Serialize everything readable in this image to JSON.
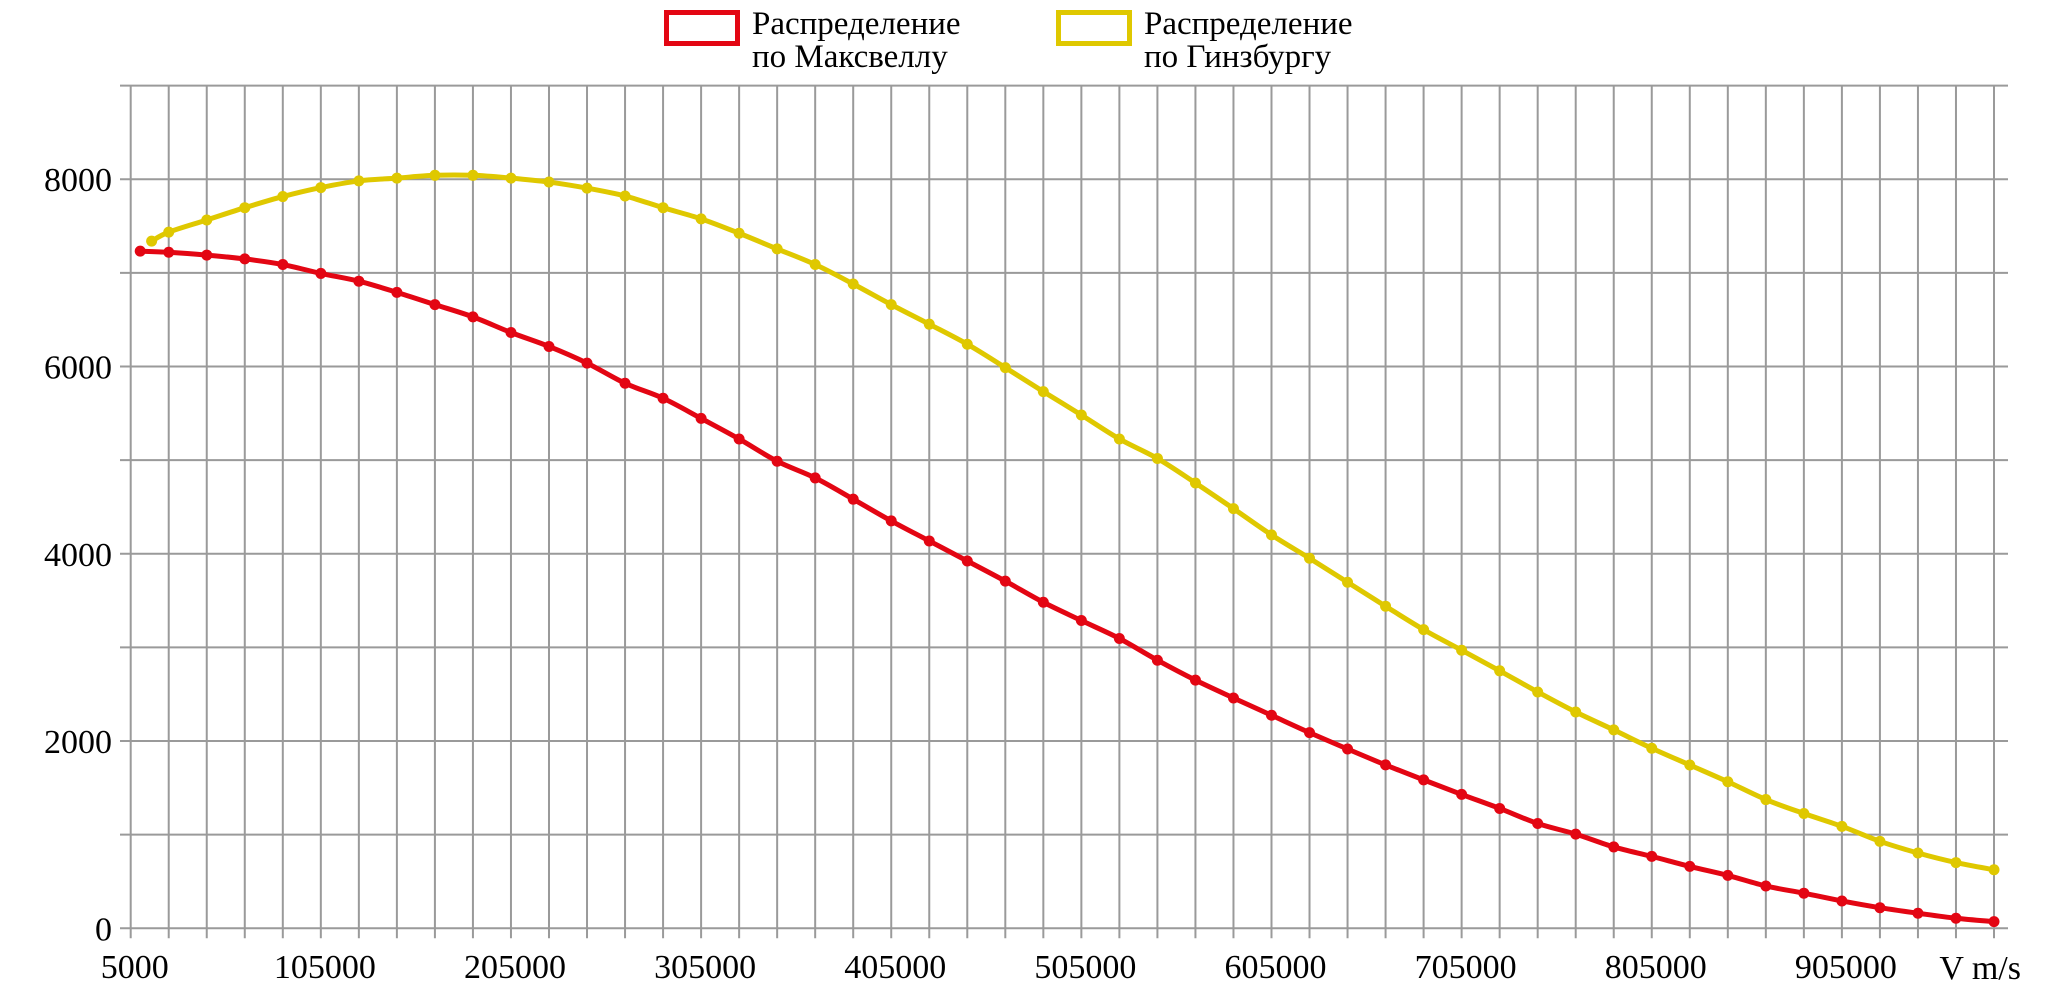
{
  "chart_data": {
    "type": "line",
    "title": "",
    "xlabel": "V m/s",
    "ylabel": "",
    "xlim": [
      5000,
      985000
    ],
    "ylim": [
      0,
      9000
    ],
    "x_grid_step": 20000,
    "y_grid_step": 1000,
    "grid": true,
    "legend_placement": "top-center",
    "x_tick_values": [
      5000,
      105000,
      205000,
      305000,
      405000,
      505000,
      605000,
      705000,
      805000,
      905000
    ],
    "x_tick_labels": [
      "5000",
      "105000",
      "205000",
      "305000",
      "405000",
      "505000",
      "605000",
      "705000",
      "805000",
      "905000"
    ],
    "y_tick_values": [
      0,
      2000,
      4000,
      6000,
      8000
    ],
    "y_tick_labels": [
      "0",
      "2000",
      "4000",
      "6000",
      "8000"
    ],
    "series": [
      {
        "name_lines": [
          "Распределение",
          "по Максвеллу"
        ],
        "color": "#e30613",
        "points": [
          [
            10000,
            7232
          ],
          [
            25000,
            7220
          ],
          [
            45000,
            7190
          ],
          [
            65000,
            7149
          ],
          [
            85000,
            7089
          ],
          [
            105000,
            6994
          ],
          [
            125000,
            6911
          ],
          [
            145000,
            6792
          ],
          [
            165000,
            6661
          ],
          [
            185000,
            6530
          ],
          [
            205000,
            6363
          ],
          [
            225000,
            6214
          ],
          [
            245000,
            6036
          ],
          [
            265000,
            5821
          ],
          [
            285000,
            5661
          ],
          [
            305000,
            5446
          ],
          [
            325000,
            5226
          ],
          [
            345000,
            4988
          ],
          [
            365000,
            4810
          ],
          [
            385000,
            4583
          ],
          [
            405000,
            4351
          ],
          [
            425000,
            4137
          ],
          [
            445000,
            3923
          ],
          [
            465000,
            3708
          ],
          [
            485000,
            3482
          ],
          [
            505000,
            3287
          ],
          [
            525000,
            3095
          ],
          [
            545000,
            2863
          ],
          [
            565000,
            2650
          ],
          [
            585000,
            2460
          ],
          [
            605000,
            2275
          ],
          [
            625000,
            2090
          ],
          [
            645000,
            1915
          ],
          [
            665000,
            1745
          ],
          [
            685000,
            1585
          ],
          [
            705000,
            1430
          ],
          [
            725000,
            1280
          ],
          [
            745000,
            1119
          ],
          [
            765000,
            1006
          ],
          [
            785000,
            869
          ],
          [
            805000,
            768
          ],
          [
            825000,
            661
          ],
          [
            845000,
            565
          ],
          [
            865000,
            452
          ],
          [
            885000,
            375
          ],
          [
            905000,
            292
          ],
          [
            925000,
            220
          ],
          [
            945000,
            161
          ],
          [
            965000,
            107
          ],
          [
            985000,
            71
          ]
        ]
      },
      {
        "name_lines": [
          "Распределение",
          "по Гинзбургу"
        ],
        "color": "#dfc800",
        "points": [
          [
            16000,
            7339
          ],
          [
            25000,
            7435
          ],
          [
            45000,
            7565
          ],
          [
            65000,
            7696
          ],
          [
            85000,
            7815
          ],
          [
            105000,
            7911
          ],
          [
            125000,
            7982
          ],
          [
            145000,
            8012
          ],
          [
            165000,
            8042
          ],
          [
            185000,
            8042
          ],
          [
            205000,
            8012
          ],
          [
            225000,
            7970
          ],
          [
            245000,
            7905
          ],
          [
            265000,
            7821
          ],
          [
            285000,
            7696
          ],
          [
            305000,
            7577
          ],
          [
            325000,
            7423
          ],
          [
            345000,
            7256
          ],
          [
            365000,
            7089
          ],
          [
            385000,
            6881
          ],
          [
            405000,
            6661
          ],
          [
            425000,
            6452
          ],
          [
            445000,
            6238
          ],
          [
            465000,
            5988
          ],
          [
            485000,
            5732
          ],
          [
            505000,
            5482
          ],
          [
            525000,
            5226
          ],
          [
            545000,
            5018
          ],
          [
            565000,
            4756
          ],
          [
            585000,
            4482
          ],
          [
            605000,
            4202
          ],
          [
            625000,
            3952
          ],
          [
            645000,
            3696
          ],
          [
            665000,
            3440
          ],
          [
            685000,
            3190
          ],
          [
            705000,
            2970
          ],
          [
            725000,
            2750
          ],
          [
            745000,
            2524
          ],
          [
            765000,
            2310
          ],
          [
            785000,
            2119
          ],
          [
            805000,
            1923
          ],
          [
            825000,
            1744
          ],
          [
            845000,
            1565
          ],
          [
            865000,
            1375
          ],
          [
            885000,
            1226
          ],
          [
            905000,
            1089
          ],
          [
            925000,
            929
          ],
          [
            945000,
            804
          ],
          [
            965000,
            702
          ],
          [
            985000,
            625
          ]
        ]
      }
    ]
  }
}
